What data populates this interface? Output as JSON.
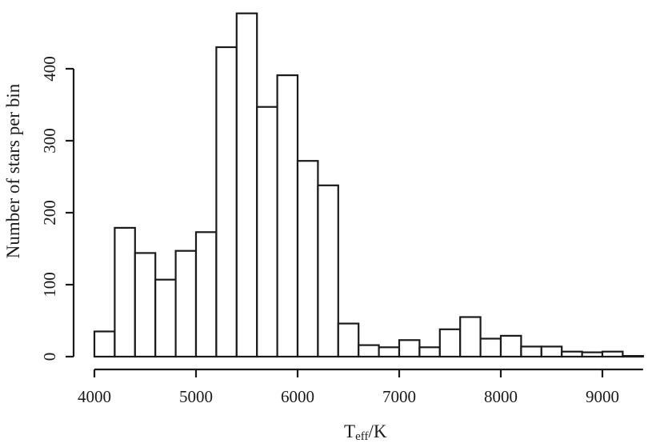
{
  "chart_data": {
    "type": "bar",
    "subtype": "histogram",
    "x": {
      "label_main": "T",
      "label_sub": "eff",
      "label_unit": "/K",
      "range": [
        4000,
        9400
      ],
      "ticks": [
        4000,
        5000,
        6000,
        7000,
        8000,
        9000
      ],
      "tick_labels": [
        "4000",
        "5000",
        "6000",
        "7000",
        "8000",
        "9000"
      ]
    },
    "y": {
      "label": "Number of stars per bin",
      "range": [
        0,
        480
      ],
      "ticks": [
        0,
        100,
        200,
        300,
        400
      ],
      "tick_labels": [
        "0",
        "100",
        "200",
        "300",
        "400"
      ]
    },
    "bin_width": 200,
    "bins": [
      {
        "start": 4000,
        "end": 4200,
        "count": 35
      },
      {
        "start": 4200,
        "end": 4400,
        "count": 179
      },
      {
        "start": 4400,
        "end": 4600,
        "count": 144
      },
      {
        "start": 4600,
        "end": 4800,
        "count": 107
      },
      {
        "start": 4800,
        "end": 5000,
        "count": 147
      },
      {
        "start": 5000,
        "end": 5200,
        "count": 173
      },
      {
        "start": 5200,
        "end": 5400,
        "count": 430
      },
      {
        "start": 5400,
        "end": 5600,
        "count": 477
      },
      {
        "start": 5600,
        "end": 5800,
        "count": 347
      },
      {
        "start": 5800,
        "end": 6000,
        "count": 391
      },
      {
        "start": 6000,
        "end": 6200,
        "count": 272
      },
      {
        "start": 6200,
        "end": 6400,
        "count": 238
      },
      {
        "start": 6400,
        "end": 6600,
        "count": 46
      },
      {
        "start": 6600,
        "end": 6800,
        "count": 16
      },
      {
        "start": 6800,
        "end": 7000,
        "count": 13
      },
      {
        "start": 7000,
        "end": 7200,
        "count": 23
      },
      {
        "start": 7200,
        "end": 7400,
        "count": 13
      },
      {
        "start": 7400,
        "end": 7600,
        "count": 38
      },
      {
        "start": 7600,
        "end": 7800,
        "count": 55
      },
      {
        "start": 7800,
        "end": 8000,
        "count": 25
      },
      {
        "start": 8000,
        "end": 8200,
        "count": 29
      },
      {
        "start": 8200,
        "end": 8400,
        "count": 14
      },
      {
        "start": 8400,
        "end": 8600,
        "count": 14
      },
      {
        "start": 8600,
        "end": 8800,
        "count": 7
      },
      {
        "start": 8800,
        "end": 9000,
        "count": 6
      },
      {
        "start": 9000,
        "end": 9200,
        "count": 7
      },
      {
        "start": 9200,
        "end": 9400,
        "count": 1
      }
    ],
    "bar_fill": "#ffffff",
    "bar_stroke": "#1a1a1a",
    "axis_color": "#1a1a1a",
    "grid": false,
    "legend": "none"
  }
}
